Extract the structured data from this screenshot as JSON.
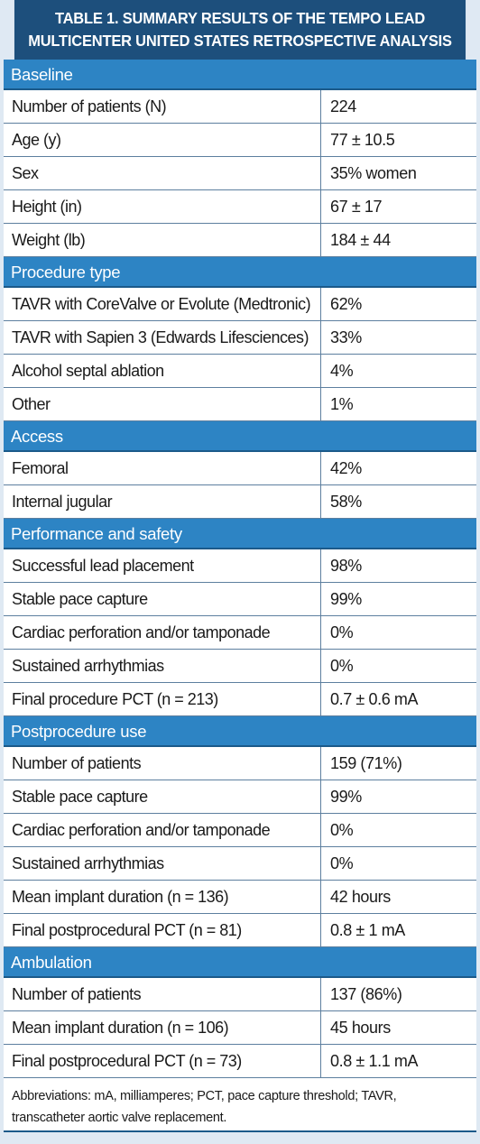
{
  "table": {
    "title_line1": "TABLE 1.  SUMMARY RESULTS OF THE TEMPO LEAD",
    "title_line2": "MULTICENTER UNITED STATES RETROSPECTIVE ANALYSIS",
    "sections": [
      {
        "header": "Baseline",
        "rows": [
          {
            "label": "Number of patients (N)",
            "value": "224"
          },
          {
            "label": "Age (y)",
            "value": "77 ± 10.5"
          },
          {
            "label": "Sex",
            "value": "35% women"
          },
          {
            "label": "Height (in)",
            "value": "67 ± 17"
          },
          {
            "label": "Weight (lb)",
            "value": "184 ± 44"
          }
        ]
      },
      {
        "header": "Procedure type",
        "rows": [
          {
            "label": "TAVR with CoreValve or Evolute (Medtronic)",
            "value": "62%"
          },
          {
            "label": "TAVR with Sapien 3 (Edwards Lifesciences)",
            "value": "33%"
          },
          {
            "label": "Alcohol septal ablation",
            "value": "4%"
          },
          {
            "label": "Other",
            "value": "1%"
          }
        ]
      },
      {
        "header": "Access",
        "rows": [
          {
            "label": "Femoral",
            "value": "42%"
          },
          {
            "label": "Internal jugular",
            "value": "58%"
          }
        ]
      },
      {
        "header": "Performance and safety",
        "rows": [
          {
            "label": "Successful lead placement",
            "value": "98%"
          },
          {
            "label": "Stable pace capture",
            "value": "99%"
          },
          {
            "label": "Cardiac perforation and/or tamponade",
            "value": "0%"
          },
          {
            "label": "Sustained arrhythmias",
            "value": "0%"
          },
          {
            "label": "Final procedure PCT (n = 213)",
            "value": "0.7 ± 0.6 mA"
          }
        ]
      },
      {
        "header": "Postprocedure use",
        "rows": [
          {
            "label": "Number of patients",
            "value": "159 (71%)"
          },
          {
            "label": "Stable pace capture",
            "value": "99%"
          },
          {
            "label": "Cardiac perforation and/or tamponade",
            "value": "0%"
          },
          {
            "label": "Sustained arrhythmias",
            "value": "0%"
          },
          {
            "label": "Mean implant duration (n = 136)",
            "value": "42 hours"
          },
          {
            "label": "Final postprocedural PCT (n = 81)",
            "value": "0.8 ± 1 mA"
          }
        ]
      },
      {
        "header": "Ambulation",
        "rows": [
          {
            "label": "Number of patients",
            "value": "137 (86%)"
          },
          {
            "label": "Mean implant duration (n = 106)",
            "value": "45 hours"
          },
          {
            "label": "Final postprocedural PCT (n = 73)",
            "value": "0.8 ± 1.1 mA"
          }
        ]
      }
    ],
    "footnote": "Abbreviations: mA, milliamperes; PCT, pace capture threshold; TAVR, transcatheter aortic valve replacement."
  },
  "colors": {
    "title_bg": "#1d4f7c",
    "section_bg": "#2d84c4",
    "border": "#5d7f9f",
    "frame_bg": "#dfe9f3"
  }
}
